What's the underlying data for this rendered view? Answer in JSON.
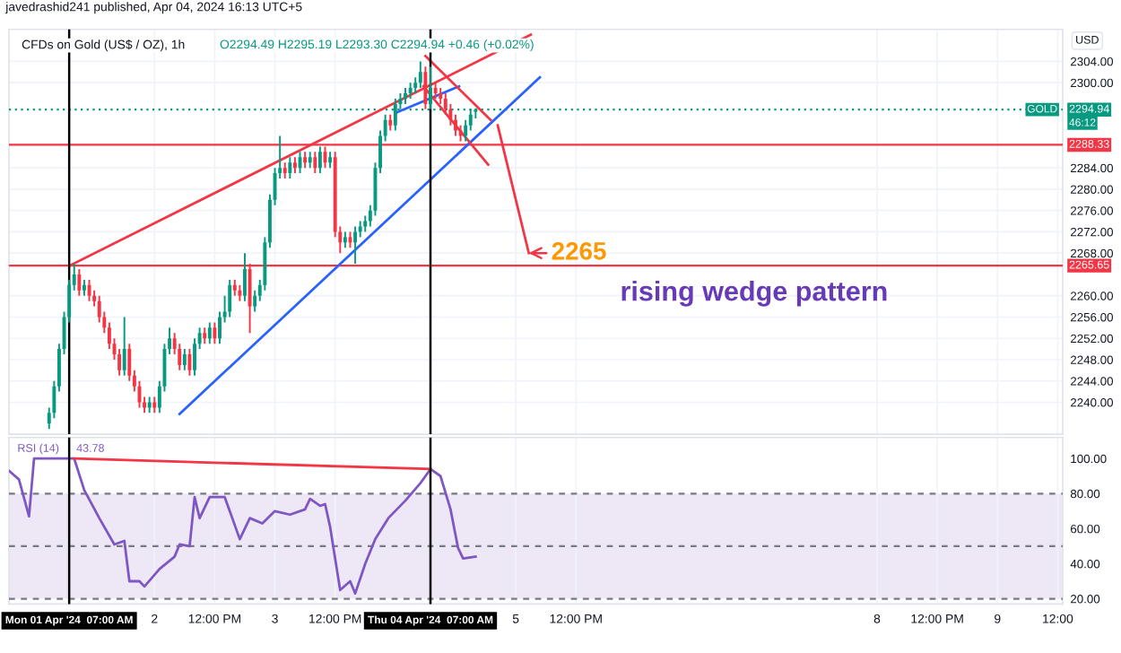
{
  "chart_data": [
    {
      "type": "candlestick",
      "title": "CFDs on Gold (US$ / OZ), 1h",
      "subtitle": "O2294.49 H2295.19 L2293.30 C2294.94 +0.46 (+0.02%)",
      "x": [
        "2024-04-01T03:00",
        "2024-04-01T04:00",
        "2024-04-01T05:00",
        "2024-04-01T06:00",
        "2024-04-01T07:00",
        "2024-04-01T08:00",
        "2024-04-01T09:00",
        "2024-04-01T10:00",
        "2024-04-01T11:00",
        "2024-04-01T12:00",
        "2024-04-01T13:00",
        "2024-04-01T14:00",
        "2024-04-01T15:00",
        "2024-04-01T16:00",
        "2024-04-01T17:00",
        "2024-04-01T18:00",
        "2024-04-01T19:00",
        "2024-04-01T20:00",
        "2024-04-01T21:00",
        "2024-04-01T22:00",
        "2024-04-01T23:00",
        "2024-04-02T00:00",
        "2024-04-02T01:00",
        "2024-04-02T02:00",
        "2024-04-02T03:00",
        "2024-04-02T04:00",
        "2024-04-02T05:00",
        "2024-04-02T06:00",
        "2024-04-02T07:00",
        "2024-04-02T08:00",
        "2024-04-02T09:00",
        "2024-04-02T10:00",
        "2024-04-02T11:00",
        "2024-04-02T12:00",
        "2024-04-02T13:00",
        "2024-04-02T14:00",
        "2024-04-02T15:00",
        "2024-04-02T16:00",
        "2024-04-02T17:00",
        "2024-04-02T18:00",
        "2024-04-02T19:00",
        "2024-04-02T20:00",
        "2024-04-02T21:00",
        "2024-04-02T22:00",
        "2024-04-02T23:00",
        "2024-04-03T00:00",
        "2024-04-03T01:00",
        "2024-04-03T02:00",
        "2024-04-03T03:00",
        "2024-04-03T04:00",
        "2024-04-03T05:00",
        "2024-04-03T06:00",
        "2024-04-03T07:00",
        "2024-04-03T08:00",
        "2024-04-03T09:00",
        "2024-04-03T10:00",
        "2024-04-03T11:00",
        "2024-04-03T12:00",
        "2024-04-03T13:00",
        "2024-04-03T14:00",
        "2024-04-03T15:00",
        "2024-04-03T16:00",
        "2024-04-03T17:00",
        "2024-04-03T18:00",
        "2024-04-03T19:00",
        "2024-04-03T20:00",
        "2024-04-03T21:00",
        "2024-04-03T22:00",
        "2024-04-03T23:00",
        "2024-04-04T00:00",
        "2024-04-04T01:00",
        "2024-04-04T02:00",
        "2024-04-04T03:00",
        "2024-04-04T04:00",
        "2024-04-04T05:00",
        "2024-04-04T06:00",
        "2024-04-04T07:00",
        "2024-04-04T08:00",
        "2024-04-04T09:00",
        "2024-04-04T10:00",
        "2024-04-04T11:00",
        "2024-04-04T12:00",
        "2024-04-04T13:00",
        "2024-04-04T14:00",
        "2024-04-04T15:00",
        "2024-04-04T16:00"
      ],
      "ohlc": [
        [
          2236,
          2239,
          2235,
          2238
        ],
        [
          2238,
          2244,
          2237,
          2243
        ],
        [
          2243,
          2251,
          2242,
          2250
        ],
        [
          2250,
          2257,
          2249,
          2256
        ],
        [
          2256,
          2263,
          2255,
          2262
        ],
        [
          2262,
          2266,
          2261,
          2264
        ],
        [
          2264,
          2265,
          2260,
          2261
        ],
        [
          2261,
          2263,
          2260,
          2262
        ],
        [
          2262,
          2263,
          2259,
          2260
        ],
        [
          2260,
          2261,
          2258,
          2259
        ],
        [
          2259,
          2260,
          2255,
          2256
        ],
        [
          2256,
          2257,
          2253,
          2254
        ],
        [
          2254,
          2255,
          2250,
          2251
        ],
        [
          2251,
          2252,
          2248,
          2249
        ],
        [
          2249,
          2250,
          2245,
          2246
        ],
        [
          2246,
          2256,
          2245,
          2250
        ],
        [
          2250,
          2251,
          2244,
          2245
        ],
        [
          2245,
          2246,
          2242,
          2243
        ],
        [
          2243,
          2244,
          2239,
          2240
        ],
        [
          2240,
          2241,
          2238,
          2239
        ],
        [
          2239,
          2241,
          2238,
          2240
        ],
        [
          2240,
          2241,
          2238,
          2239
        ],
        [
          2239,
          2244,
          2238,
          2243
        ],
        [
          2243,
          2251,
          2242,
          2250
        ],
        [
          2250,
          2254,
          2249,
          2252
        ],
        [
          2252,
          2253,
          2249,
          2250
        ],
        [
          2250,
          2251,
          2246,
          2247
        ],
        [
          2247,
          2250,
          2246,
          2249
        ],
        [
          2249,
          2250,
          2245,
          2246
        ],
        [
          2246,
          2252,
          2245,
          2251
        ],
        [
          2251,
          2254,
          2250,
          2253
        ],
        [
          2253,
          2254,
          2251,
          2252
        ],
        [
          2252,
          2255,
          2251,
          2254
        ],
        [
          2254,
          2255,
          2251,
          2252
        ],
        [
          2252,
          2257,
          2251,
          2256
        ],
        [
          2256,
          2260,
          2255,
          2257
        ],
        [
          2257,
          2263,
          2256,
          2262
        ],
        [
          2262,
          2263,
          2260,
          2261
        ],
        [
          2261,
          2262,
          2259,
          2260
        ],
        [
          2260,
          2268,
          2259,
          2265
        ],
        [
          2265,
          2266,
          2253,
          2258
        ],
        [
          2258,
          2261,
          2257,
          2260
        ],
        [
          2260,
          2263,
          2259,
          2262
        ],
        [
          2262,
          2271,
          2261,
          2270
        ],
        [
          2270,
          2279,
          2269,
          2278
        ],
        [
          2278,
          2284,
          2277,
          2283
        ],
        [
          2283,
          2290,
          2282,
          2284
        ],
        [
          2284,
          2285,
          2282,
          2283
        ],
        [
          2283,
          2286,
          2282,
          2285
        ],
        [
          2285,
          2286,
          2283,
          2284
        ],
        [
          2284,
          2287,
          2283,
          2286
        ],
        [
          2286,
          2287,
          2284,
          2285
        ],
        [
          2285,
          2287,
          2284,
          2286
        ],
        [
          2286,
          2287,
          2283,
          2284
        ],
        [
          2284,
          2288,
          2283,
          2287
        ],
        [
          2287,
          2288,
          2284,
          2285
        ],
        [
          2285,
          2287,
          2284,
          2286
        ],
        [
          2286,
          2287,
          2271,
          2272
        ],
        [
          2272,
          2273,
          2268,
          2270
        ],
        [
          2270,
          2272,
          2269,
          2271
        ],
        [
          2271,
          2272,
          2269,
          2270
        ],
        [
          2270,
          2273,
          2266,
          2272
        ],
        [
          2272,
          2274,
          2271,
          2273
        ],
        [
          2273,
          2275,
          2272,
          2274
        ],
        [
          2274,
          2277,
          2273,
          2276
        ],
        [
          2276,
          2285,
          2275,
          2284
        ],
        [
          2284,
          2291,
          2283,
          2290
        ],
        [
          2290,
          2294,
          2289,
          2293
        ],
        [
          2293,
          2294,
          2291,
          2292
        ],
        [
          2292,
          2297,
          2291,
          2296
        ],
        [
          2296,
          2298,
          2295,
          2297
        ],
        [
          2297,
          2299,
          2296,
          2298
        ],
        [
          2298,
          2300,
          2297,
          2299
        ],
        [
          2299,
          2301,
          2298,
          2300
        ],
        [
          2300,
          2304,
          2299,
          2302
        ],
        [
          2302,
          2303,
          2295,
          2296
        ],
        [
          2296,
          2303,
          2295,
          2299
        ],
        [
          2299,
          2300,
          2297,
          2298
        ],
        [
          2298,
          2299,
          2296,
          2297
        ],
        [
          2297,
          2298,
          2294,
          2295
        ],
        [
          2295,
          2296,
          2292,
          2293
        ],
        [
          2293,
          2294,
          2290,
          2291
        ],
        [
          2291,
          2292,
          2289,
          2290
        ],
        [
          2290,
          2293,
          2289,
          2292
        ],
        [
          2292,
          2295,
          2291,
          2294
        ],
        [
          2294.49,
          2295.19,
          2293.3,
          2294.94
        ]
      ],
      "colors": [
        "#089981",
        "#089981",
        "#089981",
        "#089981",
        "#089981",
        "#089981",
        "#f23645",
        "#089981",
        "#f23645",
        "#f23645",
        "#f23645",
        "#f23645",
        "#f23645",
        "#f23645",
        "#f23645",
        "#089981",
        "#f23645",
        "#f23645",
        "#f23645",
        "#f23645",
        "#089981",
        "#f23645",
        "#089981",
        "#089981",
        "#089981",
        "#f23645",
        "#f23645",
        "#089981",
        "#f23645",
        "#089981",
        "#089981",
        "#f23645",
        "#089981",
        "#f23645",
        "#089981",
        "#089981",
        "#089981",
        "#f23645",
        "#f23645",
        "#089981",
        "#f23645",
        "#089981",
        "#089981",
        "#089981",
        "#089981",
        "#089981",
        "#089981",
        "#f23645",
        "#089981",
        "#f23645",
        "#089981",
        "#f23645",
        "#089981",
        "#f23645",
        "#089981",
        "#f23645",
        "#089981",
        "#f23645",
        "#f23645",
        "#089981",
        "#f23645",
        "#089981",
        "#089981",
        "#089981",
        "#089981",
        "#089981",
        "#089981",
        "#089981",
        "#f23645",
        "#089981",
        "#089981",
        "#089981",
        "#089981",
        "#089981",
        "#089981",
        "#f23645",
        "#089981",
        "#f23645",
        "#f23645",
        "#f23645",
        "#f23645",
        "#f23645",
        "#f23645",
        "#089981",
        "#089981",
        "#089981"
      ],
      "series": [
        {
          "type": "line",
          "color": "#f23645",
          "x": [
            "2024-04-01T07:00",
            "2024-04-05T03:00"
          ],
          "values": [
            2265.6,
            2309
          ]
        },
        {
          "type": "line",
          "color": "#2962ff",
          "x": [
            "2024-04-02T05:00",
            "2024-04-05T04:48"
          ],
          "values": [
            2237.8,
            2301
          ]
        },
        {
          "type": "line",
          "color": "#2962ff",
          "x": [
            "2024-04-04T00:00",
            "2024-04-04T12:42"
          ],
          "values": [
            2294.3,
            2299.3
          ]
        },
        {
          "type": "line",
          "color": "#f23645",
          "x": [
            "2024-04-04T06:00",
            "2024-04-04T19:00"
          ],
          "values": [
            2305,
            2293
          ]
        },
        {
          "type": "line",
          "color": "#f23645",
          "x": [
            "2024-04-04T05:36",
            "2024-04-04T18:30"
          ],
          "values": [
            2299.3,
            2284.6
          ]
        },
        {
          "type": "line",
          "color": "#f23645",
          "x": [
            "2024-04-04T20:24",
            "2024-04-05T02:36"
          ],
          "values": [
            2292,
            2268
          ]
        }
      ],
      "ref_lines": [
        {
          "axis": "y",
          "value": 2288.33,
          "label": "2288.33",
          "color": "#f23645",
          "line_style": "solid"
        },
        {
          "axis": "y",
          "value": 2265.65,
          "label": "2265.65",
          "color": "#f23645",
          "line_style": "solid"
        },
        {
          "axis": "y",
          "value": 2294.94,
          "label": "2294.94",
          "color": "#089981",
          "line_style": "dotted"
        },
        {
          "axis": "x",
          "value": "2024-04-01T07:00",
          "label": null,
          "color": "#000000",
          "line_style": "solid"
        },
        {
          "axis": "x",
          "value": "2024-04-04T07:00",
          "label": null,
          "color": "#000000",
          "line_style": "solid"
        }
      ],
      "annotations": [
        "javedrashid241 published, Apr 04, 2024 16:13 UTC+5",
        {
          "text": "2265",
          "x": "2024-04-05T02:36",
          "y": 2268
        },
        "rising wedge pattern",
        "GOLD",
        "46:12",
        "USD"
      ],
      "xlim": [
        "2024-03-31T19:00",
        "2024-04-09T13:00"
      ],
      "xticks": [
        {
          "value": "2024-04-02T00:00",
          "label": null
        },
        {
          "value": "2024-04-02T12:00",
          "label": null
        },
        {
          "value": "2024-04-03T00:00",
          "label": null
        },
        {
          "value": "2024-04-03T12:00",
          "label": null
        },
        {
          "value": "2024-04-05T00:00",
          "label": null
        },
        {
          "value": "2024-04-05T12:00",
          "label": null
        },
        {
          "value": "2024-04-08T00:00",
          "label": null
        },
        {
          "value": "2024-04-08T12:00",
          "label": null
        },
        {
          "value": "2024-04-09T00:00",
          "label": null
        },
        {
          "value": "2024-04-09T12:00",
          "label": null
        }
      ],
      "ylim": [
        2234,
        2310
      ],
      "yticks": [
        {
          "value": 2240,
          "label": "2240.00"
        },
        {
          "value": 2244,
          "label": "2244.00"
        },
        {
          "value": 2248,
          "label": "2248.00"
        },
        {
          "value": 2252,
          "label": "2252.00"
        },
        {
          "value": 2256,
          "label": "2256.00"
        },
        {
          "value": 2260,
          "label": "2260.00"
        },
        {
          "value": 2268,
          "label": "2268.00"
        },
        {
          "value": 2272,
          "label": "2272.00"
        },
        {
          "value": 2276,
          "label": "2276.00"
        },
        {
          "value": 2280,
          "label": "2280.00"
        },
        {
          "value": 2284,
          "label": "2284.00"
        },
        {
          "value": 2300,
          "label": "2300.00"
        },
        {
          "value": 2304,
          "label": "2304.00"
        }
      ],
      "tick_labels": "y",
      "grid": true
    },
    {
      "type": "line",
      "series": [
        {
          "type": "line",
          "name": "RSI (14)",
          "color": "#7e57c2",
          "x": [
            "2024-03-31T19:00",
            "2024-03-31T21:00",
            "2024-03-31T23:00",
            "2024-04-01T00:00",
            "2024-04-01T02:00",
            "2024-04-01T04:00",
            "2024-04-01T06:00",
            "2024-04-01T08:00",
            "2024-04-01T10:00",
            "2024-04-01T13:00",
            "2024-04-01T16:00",
            "2024-04-01T18:00",
            "2024-04-01T19:00",
            "2024-04-01T21:00",
            "2024-04-01T22:00",
            "2024-04-02T01:00",
            "2024-04-02T04:00",
            "2024-04-02T05:00",
            "2024-04-02T07:00",
            "2024-04-02T08:00",
            "2024-04-02T09:00",
            "2024-04-02T11:00",
            "2024-04-02T14:00",
            "2024-04-02T17:00",
            "2024-04-02T19:00",
            "2024-04-02T21:30",
            "2024-04-03T00:00",
            "2024-04-03T03:00",
            "2024-04-03T06:00",
            "2024-04-03T07:00",
            "2024-04-03T09:00",
            "2024-04-03T10:00",
            "2024-04-03T11:00",
            "2024-04-03T13:00",
            "2024-04-03T15:00",
            "2024-04-03T16:00",
            "2024-04-03T18:00",
            "2024-04-03T20:00",
            "2024-04-03T22:36",
            "2024-04-04T02:00",
            "2024-04-04T05:00",
            "2024-04-04T07:00",
            "2024-04-04T09:00",
            "2024-04-04T11:00",
            "2024-04-04T12:30",
            "2024-04-04T13:30",
            "2024-04-04T16:00"
          ],
          "values": [
            93,
            88,
            67,
            100,
            100,
            100,
            100,
            100,
            82,
            66,
            51,
            53,
            30,
            30,
            27,
            37,
            44,
            51,
            50,
            78,
            66,
            78,
            78,
            54,
            66,
            63,
            70,
            68,
            71,
            77,
            73,
            74,
            61,
            25,
            30,
            23,
            40,
            54,
            66,
            76,
            86,
            94,
            90,
            71,
            49,
            43,
            44
          ]
        },
        {
          "type": "line",
          "color": "#f23645",
          "x": [
            "2024-04-01T08:00",
            "2024-04-04T07:00"
          ],
          "values": [
            100,
            94
          ]
        }
      ],
      "annotations": [
        "43.78"
      ],
      "bands": [
        {
          "axis": "y",
          "from": 20,
          "to": 80,
          "label": null,
          "color": "#ede7f6"
        }
      ],
      "ref_lines": [
        {
          "axis": "y",
          "value": 80,
          "label": null,
          "color": "#787b86",
          "line_style": "dashed"
        },
        {
          "axis": "y",
          "value": 50,
          "label": null,
          "color": "#787b86",
          "line_style": "dashed"
        },
        {
          "axis": "y",
          "value": 20,
          "label": null,
          "color": "#787b86",
          "line_style": "dashed"
        },
        {
          "axis": "x",
          "value": "2024-04-01T07:00",
          "label": "Mon 01 Apr '24  07:00 AM",
          "color": "#000000",
          "line_style": "solid"
        },
        {
          "axis": "x",
          "value": "2024-04-04T07:00",
          "label": "Thu 04 Apr '24  07:00 AM",
          "color": "#000000",
          "line_style": "solid"
        }
      ],
      "xlim": [
        "2024-03-31T19:00",
        "2024-04-09T13:00"
      ],
      "xticks": [
        {
          "value": "2024-04-02T00:00",
          "label": "2"
        },
        {
          "value": "2024-04-02T12:00",
          "label": "12:00 PM"
        },
        {
          "value": "2024-04-03T00:00",
          "label": "3"
        },
        {
          "value": "2024-04-03T12:00",
          "label": "12:00 PM"
        },
        {
          "value": "2024-04-05T00:00",
          "label": "5"
        },
        {
          "value": "2024-04-05T12:00",
          "label": "12:00 PM"
        },
        {
          "value": "2024-04-08T00:00",
          "label": "8"
        },
        {
          "value": "2024-04-08T12:00",
          "label": "12:00 PM"
        },
        {
          "value": "2024-04-09T00:00",
          "label": "9"
        },
        {
          "value": "2024-04-09T12:00",
          "label": "12:00"
        }
      ],
      "ylim": [
        17,
        112
      ],
      "yticks": [
        {
          "value": 20,
          "label": "20.00"
        },
        {
          "value": 40,
          "label": "40.00"
        },
        {
          "value": 60,
          "label": "60.00"
        },
        {
          "value": 80,
          "label": "80.00"
        },
        {
          "value": 100,
          "label": "100.00"
        }
      ],
      "grid": "x"
    }
  ]
}
